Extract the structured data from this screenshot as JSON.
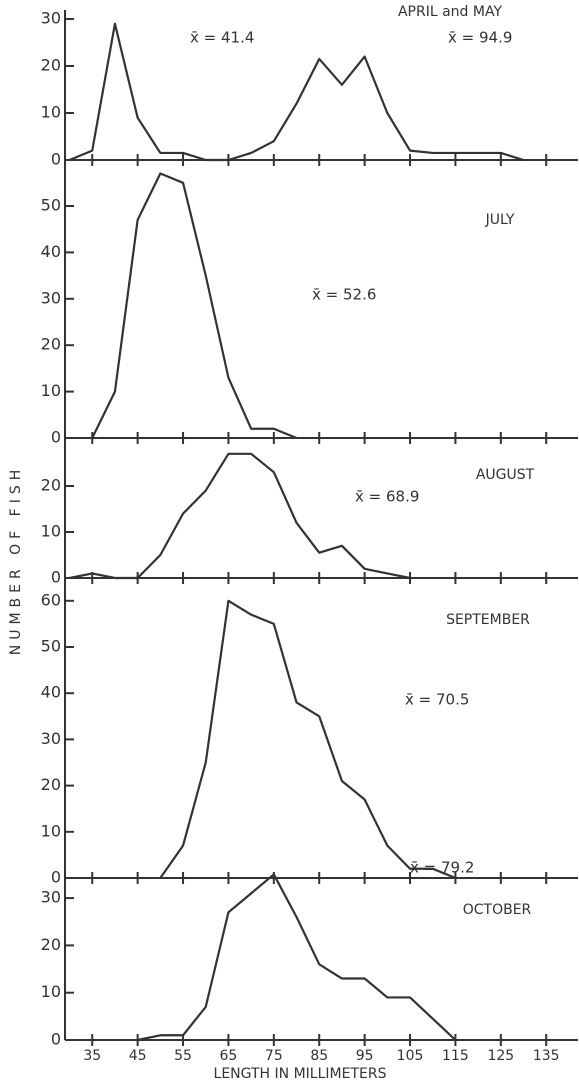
{
  "chart_data": [
    {
      "type": "line",
      "title": "APRIL and MAY",
      "annotations": [
        "x̄ = 41.4",
        "x̄ = 94.9"
      ],
      "x": [
        30,
        35,
        40,
        45,
        50,
        55,
        60,
        65,
        70,
        75,
        80,
        85,
        90,
        95,
        100,
        105,
        110,
        115,
        120,
        125,
        130
      ],
      "values": [
        0,
        2,
        29,
        9,
        1.5,
        1.5,
        0,
        0,
        1.5,
        4,
        12,
        21.5,
        16,
        22,
        10,
        2,
        1.5,
        1.5,
        1.5,
        1.5,
        0
      ],
      "color": "#333333",
      "xlim": [
        29,
        142
      ],
      "ylim": [
        0,
        32
      ],
      "yticks": [
        0,
        10,
        20,
        30
      ]
    },
    {
      "type": "line",
      "title": "JULY",
      "annotations": [
        "x̄ = 52.6"
      ],
      "x": [
        35,
        40,
        45,
        50,
        55,
        60,
        65,
        70,
        75,
        80
      ],
      "values": [
        0,
        10,
        47,
        57,
        55,
        35,
        13,
        2,
        2,
        0
      ],
      "color": "#333333",
      "xlim": [
        29,
        142
      ],
      "ylim": [
        0,
        60
      ],
      "yticks": [
        0,
        10,
        20,
        30,
        40,
        50
      ]
    },
    {
      "type": "line",
      "title": "AUGUST",
      "annotations": [
        "x̄ = 68.9"
      ],
      "ylabel": "NUMBER OF FISH",
      "x": [
        30,
        35,
        40,
        45,
        50,
        55,
        60,
        65,
        70,
        75,
        80,
        85,
        90,
        95,
        100,
        105
      ],
      "values": [
        0,
        1,
        0,
        0,
        5,
        14,
        19,
        27,
        27,
        23,
        12,
        5.5,
        7,
        2,
        1,
        0
      ],
      "color": "#333333",
      "xlim": [
        29,
        142
      ],
      "ylim": [
        0,
        30
      ],
      "yticks": [
        0,
        10,
        20
      ]
    },
    {
      "type": "line",
      "title": "SEPTEMBER",
      "annotations": [
        "x̄ = 70.5"
      ],
      "x": [
        50,
        55,
        60,
        65,
        70,
        75,
        80,
        85,
        90,
        95,
        100,
        105,
        110,
        115
      ],
      "values": [
        0,
        7,
        25,
        60,
        57,
        55,
        38,
        35,
        21,
        17,
        7,
        2,
        2,
        0
      ],
      "color": "#333333",
      "xlim": [
        29,
        142
      ],
      "ylim": [
        0,
        65
      ],
      "yticks": [
        0,
        10,
        20,
        30,
        40,
        50,
        60
      ]
    },
    {
      "type": "line",
      "title": "OCTOBER",
      "annotations": [
        "x̄ = 79.2"
      ],
      "xlabel": "LENGTH IN MILLIMETERS",
      "x": [
        45,
        50,
        55,
        60,
        65,
        70,
        75,
        80,
        85,
        90,
        95,
        100,
        105,
        110,
        115
      ],
      "values": [
        0,
        1,
        1,
        7,
        27,
        31,
        35,
        26,
        16,
        13,
        13,
        9,
        9,
        4.5,
        0
      ],
      "color": "#333333",
      "xlim": [
        29,
        142
      ],
      "ylim": [
        0,
        34
      ],
      "yticks": [
        0,
        10,
        20,
        30
      ],
      "xticks": [
        35,
        45,
        55,
        65,
        75,
        85,
        95,
        105,
        115,
        125,
        135
      ]
    }
  ]
}
